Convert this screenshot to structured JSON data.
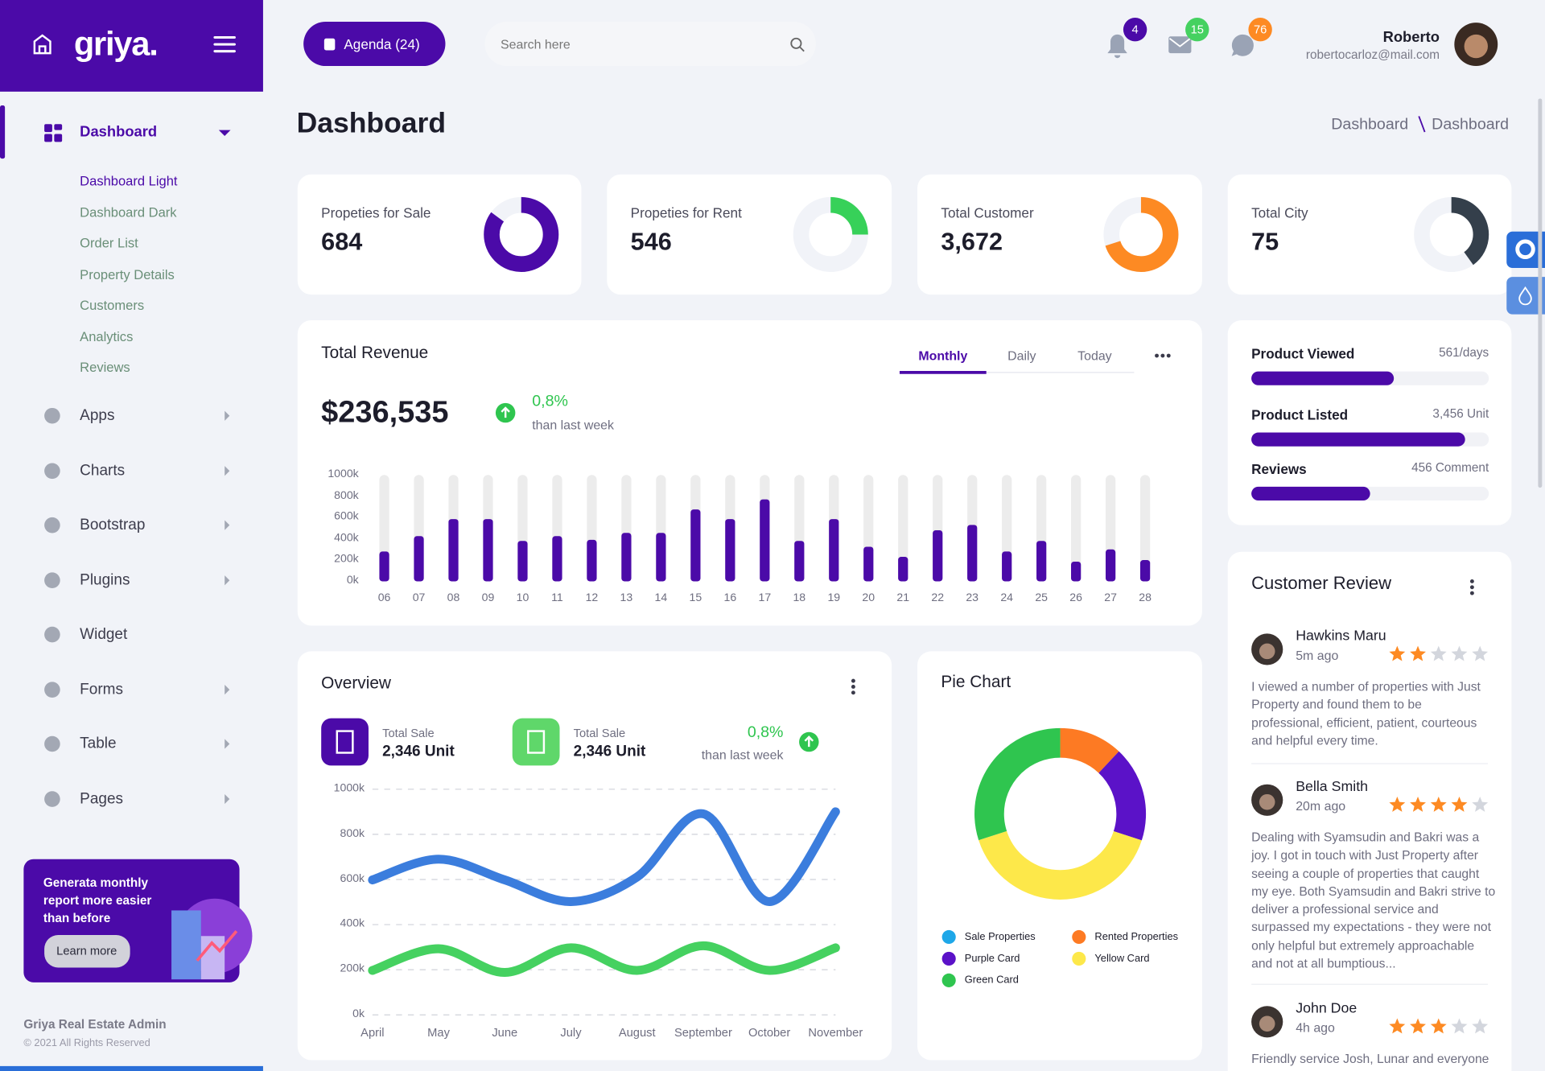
{
  "sidebar": {
    "brand": "griya.",
    "menu": [
      {
        "label": "Dashboard",
        "children": [
          "Dashboard Light",
          "Dashboard Dark",
          "Order List",
          "Property Details",
          "Customers",
          "Analytics",
          "Reviews"
        ]
      },
      {
        "label": "Apps"
      },
      {
        "label": "Charts"
      },
      {
        "label": "Bootstrap"
      },
      {
        "label": "Plugins"
      },
      {
        "label": "Widget"
      },
      {
        "label": "Forms"
      },
      {
        "label": "Table"
      },
      {
        "label": "Pages"
      }
    ],
    "promo": {
      "text": "Generata monthly report more easier than before",
      "button": "Learn more"
    },
    "footer": {
      "title": "Griya Real Estate Admin",
      "copyright": "© 2021 All Rights Reserved"
    }
  },
  "header": {
    "agenda": "Agenda (24)",
    "search_placeholder": "Search here",
    "badges": [
      4,
      15,
      76
    ],
    "user": {
      "name": "Roberto",
      "email": "robertocarloz@mail.com"
    }
  },
  "page": {
    "title": "Dashboard",
    "breadcrumb": [
      "Dashboard",
      "Dashboard"
    ]
  },
  "stats": [
    {
      "label": "Propeties for Sale",
      "value": "684",
      "share": 85,
      "color": "#4b0aa8"
    },
    {
      "label": "Propeties for Rent",
      "value": "546",
      "share": 25,
      "color": "#37d159"
    },
    {
      "label": "Total Customer",
      "value": "3,672",
      "share": 70,
      "color": "#fd8a23"
    },
    {
      "label": "Total City",
      "value": "75",
      "share": 40,
      "color": "#343f4b"
    }
  ],
  "progress": [
    {
      "label": "Product Viewed",
      "value_label": "561/days",
      "percent": 60
    },
    {
      "label": "Product Listed",
      "value_label": "3,456 Unit",
      "percent": 90
    },
    {
      "label": "Reviews",
      "value_label": "456 Comment",
      "percent": 50
    }
  ],
  "chart_data": [
    {
      "type": "bar",
      "title": "Total Revenue",
      "total": "$236,535",
      "change": "0,8%",
      "change_note": "than last week",
      "tabs": [
        "Monthly",
        "Daily",
        "Today"
      ],
      "categories": [
        "06",
        "07",
        "08",
        "09",
        "10",
        "11",
        "12",
        "13",
        "14",
        "15",
        "16",
        "17",
        "18",
        "19",
        "20",
        "21",
        "22",
        "23",
        "24",
        "25",
        "26",
        "27",
        "28"
      ],
      "values": [
        280,
        425,
        585,
        585,
        380,
        425,
        390,
        455,
        455,
        675,
        585,
        770,
        380,
        585,
        325,
        230,
        480,
        530,
        280,
        380,
        185,
        300,
        200
      ],
      "color": "#4b0aa8",
      "ylim": [
        0,
        1000
      ],
      "yticks": [
        {
          "value": 0,
          "label": "0k"
        },
        {
          "value": 200,
          "label": "200k"
        },
        {
          "value": 400,
          "label": "400k"
        },
        {
          "value": 600,
          "label": "600k"
        },
        {
          "value": 800,
          "label": "800k"
        },
        {
          "value": 1000,
          "label": "1000k"
        }
      ]
    },
    {
      "type": "line",
      "title": "Overview",
      "summary": [
        {
          "label": "Total Sale",
          "value": "2,346 Unit"
        },
        {
          "label": "Total Sale",
          "value": "2,346 Unit"
        }
      ],
      "change": "0,8%",
      "change_note": "than last week",
      "categories": [
        "April",
        "May",
        "June",
        "July",
        "August",
        "September",
        "October",
        "November"
      ],
      "series": [
        {
          "color": "#3b7ddd",
          "values": [
            598,
            690,
            598,
            502,
            611,
            891,
            502,
            900
          ]
        },
        {
          "color": "#45d160",
          "values": [
            197,
            293,
            188,
            297,
            197,
            306,
            197,
            297
          ]
        }
      ],
      "ylim": [
        0,
        1000
      ],
      "grid": true,
      "yticks": [
        {
          "value": 0,
          "label": "0k"
        },
        {
          "value": 200,
          "label": "200k"
        },
        {
          "value": 400,
          "label": "400k"
        },
        {
          "value": 600,
          "label": "600k"
        },
        {
          "value": 800,
          "label": "800k"
        },
        {
          "value": 1000,
          "label": "1000k"
        }
      ]
    },
    {
      "type": "pie",
      "title": "Pie Chart",
      "categories": [
        "Sale Properties",
        "Rented Properties",
        "Purple Card",
        "Yellow Card",
        "Green Card"
      ],
      "values": [
        0,
        12,
        18,
        40,
        30
      ],
      "colors": [
        "#1ea7e8",
        "#fd7a23",
        "#5b12c8",
        "#fde84a",
        "#2fc54f"
      ]
    }
  ],
  "reviews": {
    "title": "Customer Review",
    "items": [
      {
        "name": "Hawkins Maru",
        "time": "5m ago",
        "rating": 2,
        "text": "I viewed a number of properties with Just Property and found them to be professional, efficient, patient, courteous and helpful every time."
      },
      {
        "name": "Bella Smith",
        "time": "20m ago",
        "rating": 4,
        "text": "Dealing with Syamsudin and Bakri was a joy. I got in touch with Just Property after seeing a couple of properties that caught my eye. Both Syamsudin and Bakri strive to deliver a professional service and surpassed my expectations - they were not only helpful but extremely approachable and not at all bumptious..."
      },
      {
        "name": "John Doe",
        "time": "4h ago",
        "rating": 3,
        "text": "Friendly service Josh, Lunar and everyone"
      }
    ]
  }
}
